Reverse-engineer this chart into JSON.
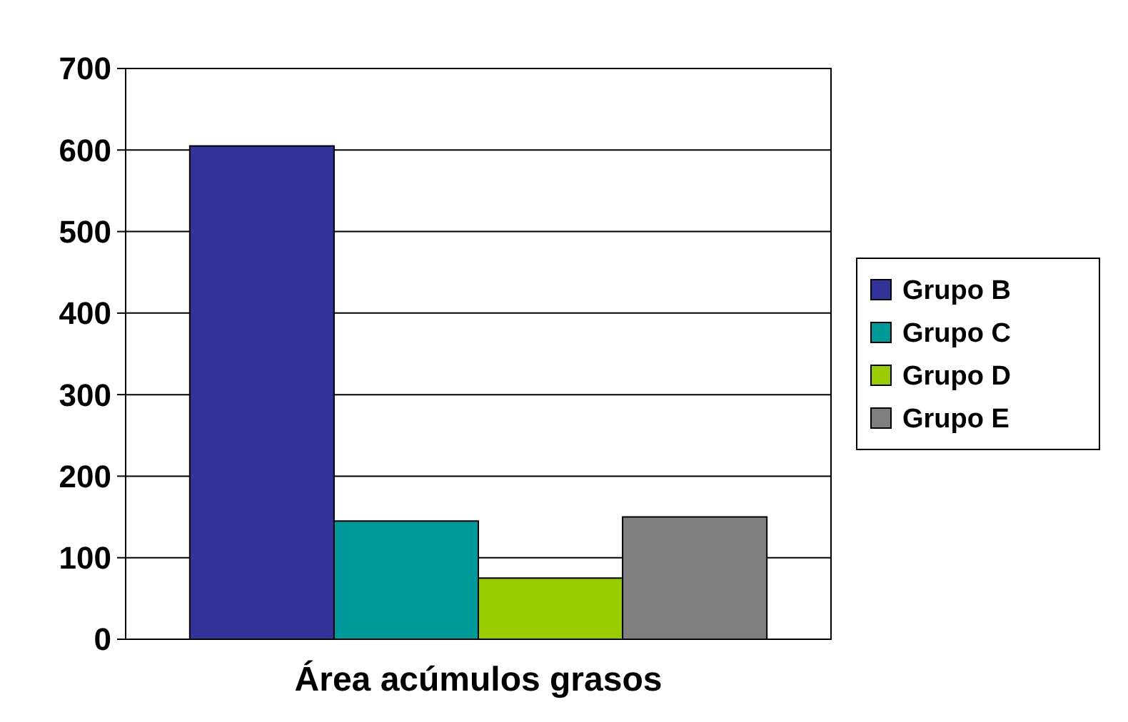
{
  "chart_data": {
    "type": "bar",
    "categories": [
      "Área acúmulos grasos"
    ],
    "series": [
      {
        "name": "Grupo B",
        "color": "#333399",
        "values": [
          605
        ]
      },
      {
        "name": "Grupo C",
        "color": "#009999",
        "values": [
          145
        ]
      },
      {
        "name": "Grupo D",
        "color": "#99cc00",
        "values": [
          75
        ]
      },
      {
        "name": "Grupo E",
        "color": "#808080",
        "values": [
          150
        ]
      }
    ],
    "ylim": [
      0,
      700
    ],
    "yticks": [
      0,
      100,
      200,
      300,
      400,
      500,
      600,
      700
    ],
    "grid": "y",
    "legend": "right"
  }
}
